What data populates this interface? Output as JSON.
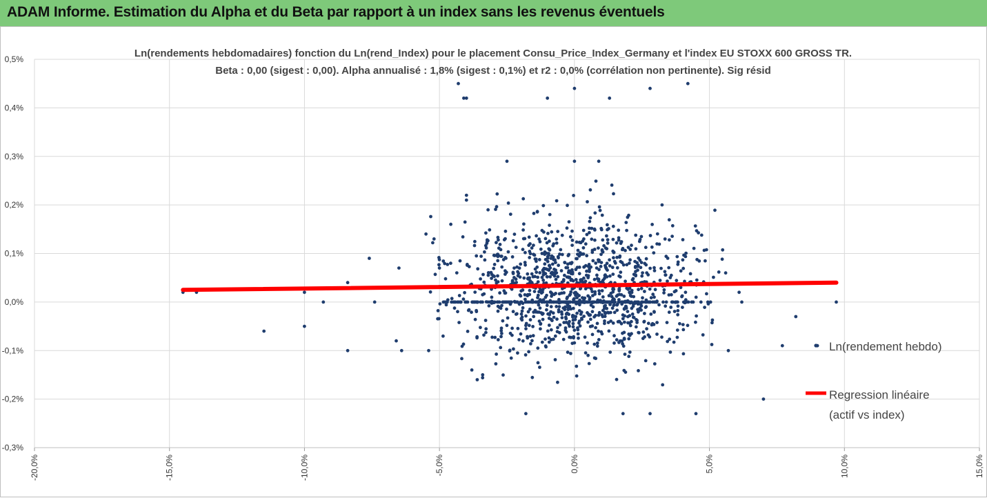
{
  "banner": {
    "title": "ADAM Informe. Estimation du Alpha et du Beta par rapport à un index sans les revenus éventuels"
  },
  "colors": {
    "banner": "#7ec97a",
    "points": "#1f3d6e",
    "regression": "#ff0000",
    "grid": "#d9d9d9"
  },
  "chart_data": {
    "type": "scatter",
    "title": "Ln(rendements hebdomadaires) fonction du Ln(rend_Index) pour le placement Consu_Price_Index_Germany et l'index EU STOXX 600 GROSS TR.",
    "subtitle": "Beta : 0,00 (sigest : 0,00). Alpha annualisé : 1,8% (sigest : 0,1%) et r2 : 0,0% (corrélation non pertinente). Sig résid",
    "xlabel": "",
    "ylabel": "",
    "xlim": [
      -0.2,
      0.15
    ],
    "ylim": [
      -0.003,
      0.005
    ],
    "x_ticks": [
      -0.2,
      -0.15,
      -0.1,
      -0.05,
      0.0,
      0.05,
      0.1,
      0.15
    ],
    "x_tick_labels": [
      "-20,0%",
      "-15,0%",
      "-10,0%",
      "-5,0%",
      "0,0%",
      "5,0%",
      "10,0%",
      "15,0%"
    ],
    "y_ticks": [
      -0.003,
      -0.002,
      -0.001,
      0.0,
      0.001,
      0.002,
      0.003,
      0.004,
      0.005
    ],
    "y_tick_labels": [
      "-0,3%",
      "-0,2%",
      "-0,1%",
      "0,0%",
      "0,1%",
      "0,2%",
      "0,3%",
      "0,4%",
      "0,5%"
    ],
    "grid": true,
    "legend_position": "right",
    "series": [
      {
        "name": "Ln(rendement hebdo)",
        "kind": "scatter",
        "color": "#1f3d6e",
        "outliers": [
          [
            -0.145,
            0.0002
          ],
          [
            -0.14,
            0.0002
          ],
          [
            -0.115,
            -0.0006
          ],
          [
            -0.1,
            0.0002
          ],
          [
            -0.1,
            -0.0005
          ],
          [
            -0.093,
            0.0
          ],
          [
            -0.084,
            0.0004
          ],
          [
            -0.084,
            -0.001
          ],
          [
            -0.076,
            0.0009
          ],
          [
            -0.074,
            0.0
          ],
          [
            -0.066,
            -0.0008
          ],
          [
            -0.065,
            0.0007
          ],
          [
            -0.064,
            -0.001
          ],
          [
            -0.055,
            0.0014
          ],
          [
            -0.054,
            -0.001
          ],
          [
            -0.052,
            0.0013
          ],
          [
            -0.05,
            0.0007
          ],
          [
            -0.048,
            0.0
          ],
          [
            -0.043,
            0.0045
          ],
          [
            -0.041,
            0.0042
          ],
          [
            -0.04,
            0.0042
          ],
          [
            -0.04,
            0.0021
          ],
          [
            -0.04,
            0.0022
          ],
          [
            -0.038,
            -0.0014
          ],
          [
            -0.036,
            -0.0016
          ],
          [
            -0.034,
            -0.0015
          ],
          [
            -0.032,
            0.0019
          ],
          [
            -0.025,
            0.0029
          ],
          [
            -0.018,
            -0.0023
          ],
          [
            -0.01,
            0.0042
          ],
          [
            0.0,
            0.0029
          ],
          [
            0.0,
            0.0044
          ],
          [
            0.009,
            0.0029
          ],
          [
            0.013,
            0.0042
          ],
          [
            0.018,
            -0.0023
          ],
          [
            0.028,
            0.0044
          ],
          [
            0.028,
            -0.0023
          ],
          [
            0.042,
            0.0045
          ],
          [
            0.045,
            -0.0023
          ],
          [
            0.056,
            0.0006
          ],
          [
            0.057,
            -0.001
          ],
          [
            0.061,
            0.0002
          ],
          [
            0.062,
            0.0
          ],
          [
            0.077,
            -0.0009
          ],
          [
            0.082,
            -0.0003
          ],
          [
            0.07,
            -0.002
          ],
          [
            0.09,
            -0.0009
          ],
          [
            0.097,
            0.0
          ]
        ],
        "bulk": {
          "count": 1150,
          "x_mean": 0.0,
          "x_sd": 0.022,
          "y_mean": 0.0003,
          "y_sd": 0.00075,
          "zero_band_count": 240
        }
      },
      {
        "name": "Regression linéaire (actif vs index)",
        "kind": "line",
        "color": "#ff0000",
        "x": [
          -0.145,
          0.097
        ],
        "y": [
          0.00025,
          0.0004
        ]
      }
    ],
    "legend": [
      {
        "label": "Ln(rendement hebdo)",
        "marker": "point"
      },
      {
        "label_line1": "Regression linéaire",
        "label_line2": "(actif vs index)",
        "marker": "line"
      }
    ]
  }
}
